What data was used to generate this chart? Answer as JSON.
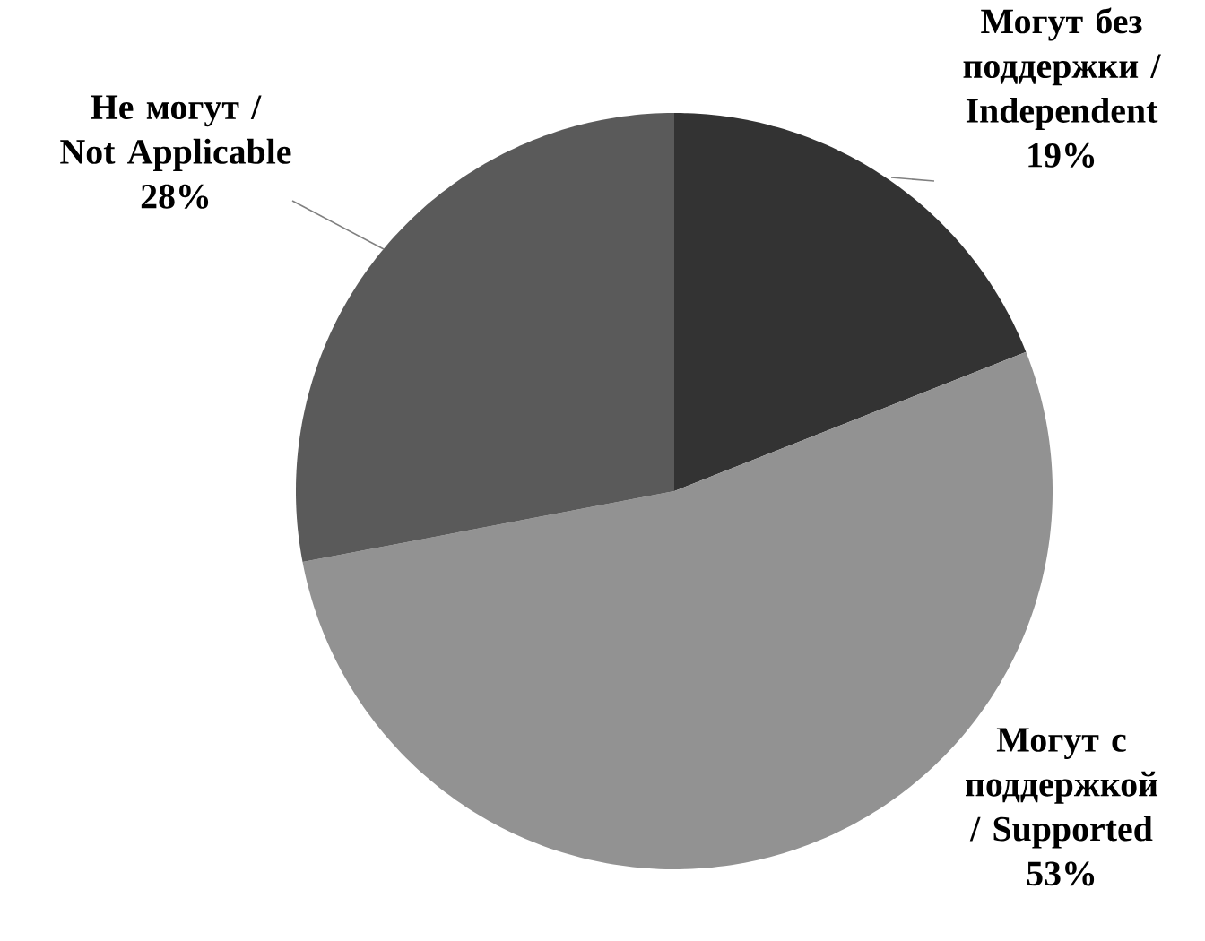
{
  "chart_data": {
    "type": "pie",
    "categories": [
      "Могут без поддержки / Independent",
      "Могут с поддержкой / Supported",
      "Не могут / Not Applicable"
    ],
    "values": [
      19,
      53,
      28
    ],
    "colors": [
      "#333333",
      "#929292",
      "#5a5a5a"
    ],
    "value_labels": [
      "19%",
      "53%",
      "28%"
    ]
  }
}
